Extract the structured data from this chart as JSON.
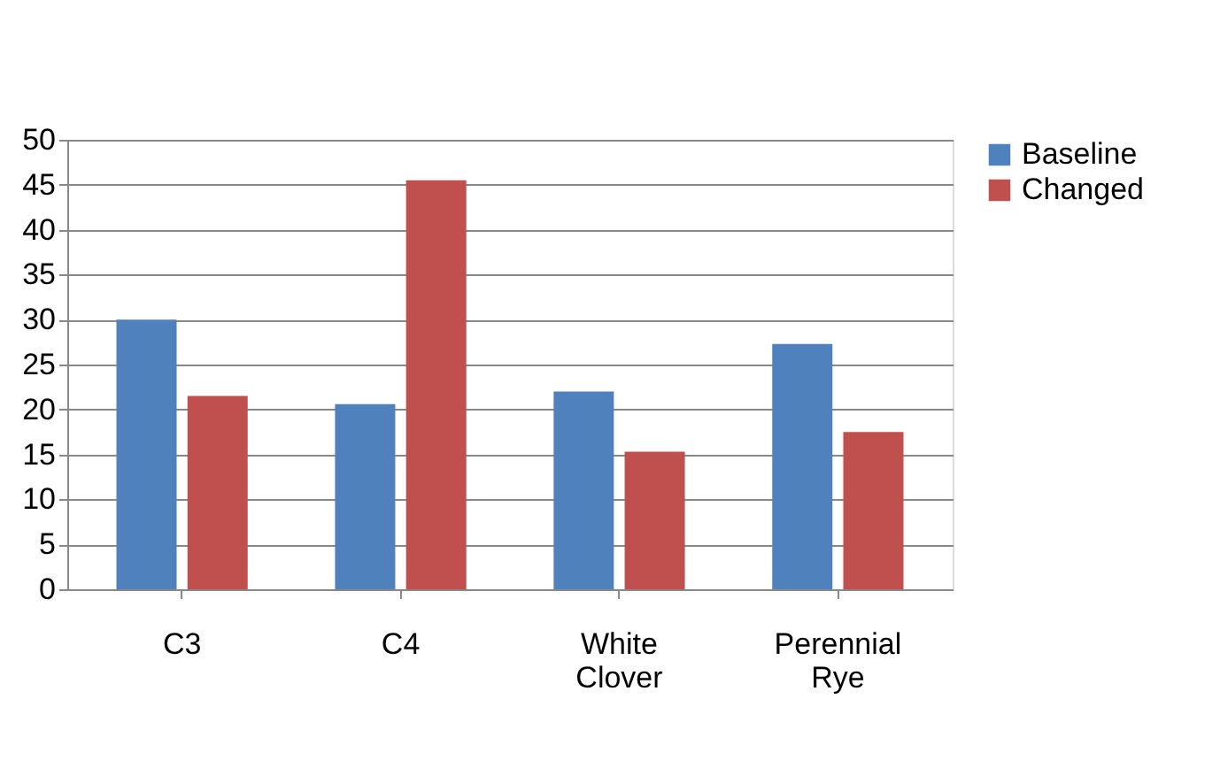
{
  "chart_data": {
    "type": "bar",
    "categories": [
      "C3",
      "C4",
      "White Clover",
      "Perennial Rye"
    ],
    "series": [
      {
        "name": "Baseline",
        "color": "#4f81bd",
        "values": [
          30,
          20.6,
          22,
          27.3
        ]
      },
      {
        "name": "Changed",
        "color": "#c0504d",
        "values": [
          21.5,
          45.5,
          15.3,
          17.5
        ]
      }
    ],
    "ylim": [
      0,
      50
    ],
    "yticks": [
      0,
      5,
      10,
      15,
      20,
      25,
      30,
      35,
      40,
      45,
      50
    ],
    "grid": "y",
    "legend": "right"
  }
}
